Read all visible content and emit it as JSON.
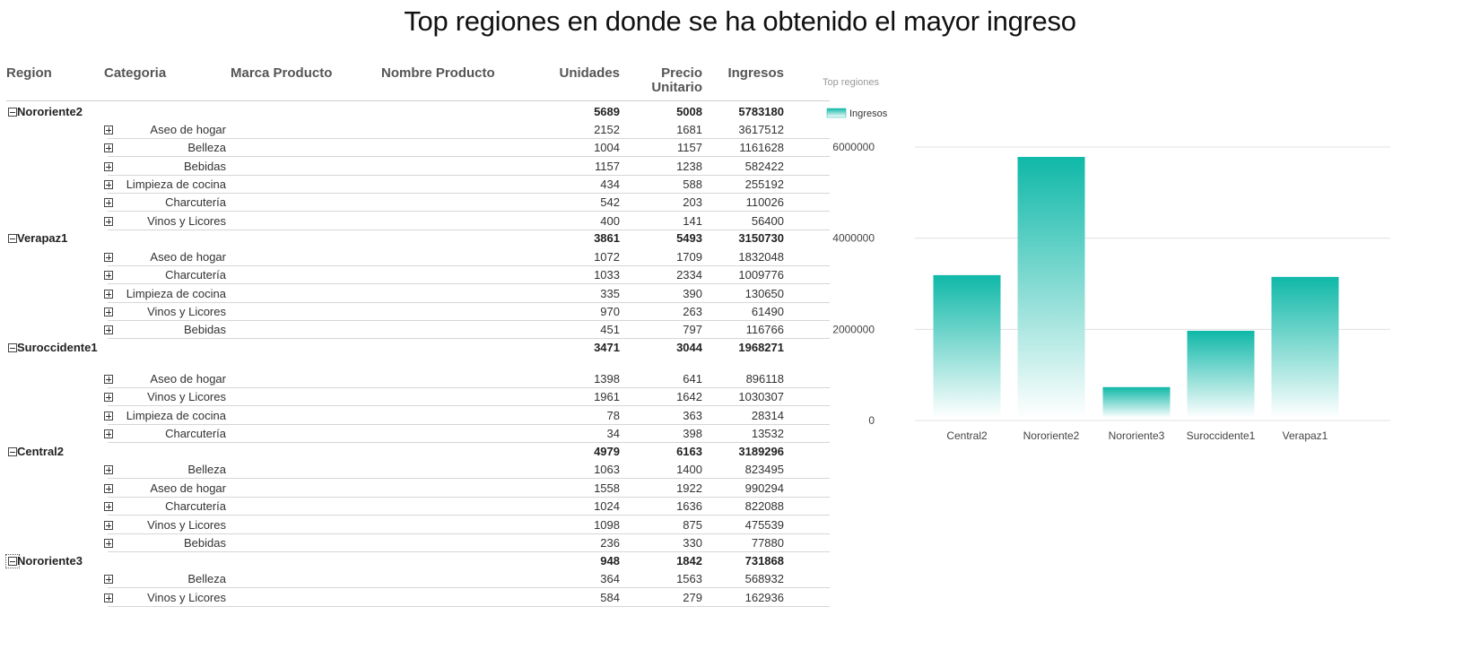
{
  "title": "Top regiones en donde se ha obtenido el mayor ingreso",
  "table": {
    "headers": {
      "region": "Region",
      "categoria": "Categoria",
      "marca": "Marca Producto",
      "nombre": "Nombre Producto",
      "unidades": "Unidades",
      "precio_line1": "Precio",
      "precio_line2": "Unitario",
      "ingresos": "Ingresos"
    },
    "groups": [
      {
        "region": "Nororiente2",
        "unidades": "5689",
        "precio": "5008",
        "ingresos": "5783180",
        "rows": [
          {
            "categoria": "Aseo de hogar",
            "unidades": "2152",
            "precio": "1681",
            "ingresos": "3617512"
          },
          {
            "categoria": "Belleza",
            "unidades": "1004",
            "precio": "1157",
            "ingresos": "1161628"
          },
          {
            "categoria": "Bebidas",
            "unidades": "1157",
            "precio": "1238",
            "ingresos": "582422"
          },
          {
            "categoria": "Limpieza de cocina",
            "unidades": "434",
            "precio": "588",
            "ingresos": "255192"
          },
          {
            "categoria": "Charcutería",
            "unidades": "542",
            "precio": "203",
            "ingresos": "110026"
          },
          {
            "categoria": "Vinos y Licores",
            "unidades": "400",
            "precio": "141",
            "ingresos": "56400"
          }
        ]
      },
      {
        "region": "Verapaz1",
        "unidades": "3861",
        "precio": "5493",
        "ingresos": "3150730",
        "rows": [
          {
            "categoria": "Aseo de hogar",
            "unidades": "1072",
            "precio": "1709",
            "ingresos": "1832048"
          },
          {
            "categoria": "Charcutería",
            "unidades": "1033",
            "precio": "2334",
            "ingresos": "1009776"
          },
          {
            "categoria": "Limpieza de cocina",
            "unidades": "335",
            "precio": "390",
            "ingresos": "130650"
          },
          {
            "categoria": "Vinos y Licores",
            "unidades": "970",
            "precio": "263",
            "ingresos": "61490"
          },
          {
            "categoria": "Bebidas",
            "unidades": "451",
            "precio": "797",
            "ingresos": "116766"
          }
        ]
      },
      {
        "region": "Suroccidente1",
        "unidades": "3471",
        "precio": "3044",
        "ingresos": "1968271",
        "rows": [
          {
            "categoria": "Aseo de hogar",
            "unidades": "1398",
            "precio": "641",
            "ingresos": "896118"
          },
          {
            "categoria": "Vinos y Licores",
            "unidades": "1961",
            "precio": "1642",
            "ingresos": "1030307"
          },
          {
            "categoria": "Limpieza de cocina",
            "unidades": "78",
            "precio": "363",
            "ingresos": "28314"
          },
          {
            "categoria": "Charcutería",
            "unidades": "34",
            "precio": "398",
            "ingresos": "13532"
          }
        ]
      },
      {
        "region": "Central2",
        "unidades": "4979",
        "precio": "6163",
        "ingresos": "3189296",
        "rows": [
          {
            "categoria": "Belleza",
            "unidades": "1063",
            "precio": "1400",
            "ingresos": "823495"
          },
          {
            "categoria": "Aseo de hogar",
            "unidades": "1558",
            "precio": "1922",
            "ingresos": "990294"
          },
          {
            "categoria": "Charcutería",
            "unidades": "1024",
            "precio": "1636",
            "ingresos": "822088"
          },
          {
            "categoria": "Vinos y Licores",
            "unidades": "1098",
            "precio": "875",
            "ingresos": "475539"
          },
          {
            "categoria": "Bebidas",
            "unidades": "236",
            "precio": "330",
            "ingresos": "77880"
          }
        ]
      },
      {
        "region": "Nororiente3",
        "unidades": "948",
        "precio": "1842",
        "ingresos": "731868",
        "rows": [
          {
            "categoria": "Belleza",
            "unidades": "364",
            "precio": "1563",
            "ingresos": "568932"
          },
          {
            "categoria": "Vinos y Licores",
            "unidades": "584",
            "precio": "279",
            "ingresos": "162936"
          }
        ]
      }
    ]
  },
  "chart_data": {
    "type": "bar",
    "title": "Top regiones",
    "legend": [
      "Ingresos"
    ],
    "legend_position": "top-left",
    "categories": [
      "Central2",
      "Nororiente2",
      "Nororiente3",
      "Suroccidente1",
      "Verapaz1"
    ],
    "series": [
      {
        "name": "Ingresos",
        "values": [
          3189296,
          5783180,
          731868,
          1968271,
          3150730
        ]
      }
    ],
    "yticks": [
      "0",
      "2000000",
      "4000000",
      "6000000"
    ],
    "ylim": [
      0,
      6000000
    ],
    "grid": true,
    "colors": {
      "bar_top": "#0fb8a8",
      "bar_bottom": "#ffffff",
      "grid": "#e0e0e0"
    }
  }
}
